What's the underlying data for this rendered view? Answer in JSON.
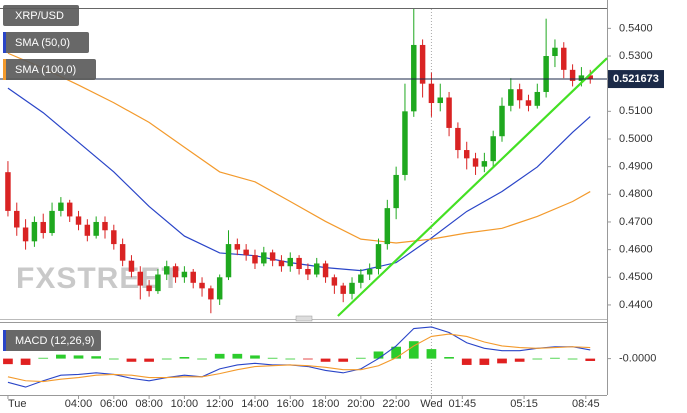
{
  "chart_data": [
    {
      "type": "candlestick",
      "name": "XRP/USD",
      "watermark": "FXSTREET",
      "up_color": "#1fa81f",
      "down_color": "#d92323",
      "x": [
        0,
        0.5,
        1,
        1.5,
        2,
        2.5,
        3,
        3.5,
        4,
        4.5,
        5,
        5.5,
        6,
        6.5,
        7,
        7.5,
        8,
        8.5,
        9,
        9.5,
        10,
        10.5,
        11,
        11.5,
        12,
        12.5,
        13,
        13.5,
        14,
        14.5,
        15,
        15.5,
        16,
        16.5,
        17,
        17.5,
        18,
        18.5,
        19,
        19.5,
        20,
        20.5,
        21,
        21.5,
        22,
        22.5,
        23,
        23.5,
        24,
        24.5,
        25,
        25.5,
        26,
        26.5,
        27,
        27.5,
        28,
        28.5,
        29,
        29.5,
        30,
        30.5,
        31,
        31.5,
        32,
        32.5,
        33
      ],
      "open": [
        0.488,
        0.474,
        0.468,
        0.463,
        0.47,
        0.466,
        0.474,
        0.477,
        0.472,
        0.469,
        0.465,
        0.47,
        0.467,
        0.462,
        0.456,
        0.452,
        0.447,
        0.445,
        0.451,
        0.454,
        0.45,
        0.452,
        0.448,
        0.446,
        0.442,
        0.45,
        0.462,
        0.46,
        0.458,
        0.455,
        0.459,
        0.456,
        0.454,
        0.457,
        0.453,
        0.451,
        0.455,
        0.45,
        0.447,
        0.444,
        0.448,
        0.451,
        0.453,
        0.462,
        0.475,
        0.487,
        0.51,
        0.534,
        0.52,
        0.513,
        0.515,
        0.504,
        0.496,
        0.493,
        0.49,
        0.492,
        0.501,
        0.512,
        0.518,
        0.514,
        0.512,
        0.517,
        0.53,
        0.533,
        0.525,
        0.521,
        0.523
      ],
      "high": [
        0.492,
        0.477,
        0.471,
        0.472,
        0.473,
        0.477,
        0.479,
        0.478,
        0.474,
        0.471,
        0.472,
        0.472,
        0.469,
        0.464,
        0.458,
        0.454,
        0.449,
        0.453,
        0.456,
        0.455,
        0.454,
        0.453,
        0.45,
        0.447,
        0.451,
        0.467,
        0.464,
        0.462,
        0.46,
        0.461,
        0.46,
        0.458,
        0.459,
        0.458,
        0.455,
        0.457,
        0.456,
        0.451,
        0.448,
        0.45,
        0.453,
        0.455,
        0.464,
        0.478,
        0.49,
        0.52,
        0.547,
        0.536,
        0.524,
        0.52,
        0.517,
        0.506,
        0.499,
        0.495,
        0.495,
        0.503,
        0.515,
        0.522,
        0.52,
        0.516,
        0.52,
        0.5435,
        0.536,
        0.535,
        0.527,
        0.526,
        0.525
      ],
      "low": [
        0.472,
        0.465,
        0.46,
        0.461,
        0.464,
        0.465,
        0.472,
        0.47,
        0.467,
        0.463,
        0.464,
        0.464,
        0.46,
        0.454,
        0.45,
        0.442,
        0.443,
        0.444,
        0.449,
        0.448,
        0.448,
        0.446,
        0.443,
        0.437,
        0.44,
        0.449,
        0.458,
        0.456,
        0.453,
        0.454,
        0.454,
        0.452,
        0.452,
        0.451,
        0.449,
        0.45,
        0.448,
        0.444,
        0.441,
        0.442,
        0.446,
        0.449,
        0.451,
        0.46,
        0.471,
        0.485,
        0.508,
        0.515,
        0.508,
        0.51,
        0.501,
        0.493,
        0.489,
        0.487,
        0.488,
        0.49,
        0.499,
        0.51,
        0.511,
        0.51,
        0.511,
        0.515,
        0.526,
        0.522,
        0.519,
        0.519,
        0.52
      ],
      "close": [
        0.474,
        0.468,
        0.463,
        0.47,
        0.466,
        0.474,
        0.477,
        0.472,
        0.469,
        0.465,
        0.47,
        0.467,
        0.462,
        0.456,
        0.452,
        0.447,
        0.445,
        0.451,
        0.454,
        0.45,
        0.452,
        0.448,
        0.446,
        0.442,
        0.45,
        0.462,
        0.46,
        0.458,
        0.455,
        0.459,
        0.456,
        0.454,
        0.457,
        0.453,
        0.451,
        0.455,
        0.45,
        0.447,
        0.444,
        0.448,
        0.451,
        0.453,
        0.462,
        0.475,
        0.487,
        0.51,
        0.534,
        0.52,
        0.513,
        0.515,
        0.504,
        0.496,
        0.493,
        0.49,
        0.492,
        0.501,
        0.512,
        0.518,
        0.514,
        0.512,
        0.517,
        0.53,
        0.533,
        0.525,
        0.521,
        0.523,
        0.5217
      ],
      "overlays": [
        {
          "name": "SMA (50,0)",
          "color": "#2a45c8",
          "x": [
            0,
            2,
            4,
            6,
            8,
            10,
            12,
            14,
            16,
            18,
            20,
            22,
            24,
            26,
            28,
            30,
            32,
            33
          ],
          "values": [
            0.5184,
            0.5095,
            0.4988,
            0.4881,
            0.4756,
            0.4649,
            0.4588,
            0.4578,
            0.4553,
            0.4535,
            0.4524,
            0.4553,
            0.4642,
            0.4738,
            0.481,
            0.4899,
            0.5024,
            0.5081
          ]
        },
        {
          "name": "SMA (100,0)",
          "color": "#f39a2c",
          "x": [
            0,
            2,
            4,
            6,
            8,
            10,
            12,
            14,
            16,
            18,
            20,
            22,
            24,
            26,
            28,
            30,
            32,
            33
          ],
          "values": [
            0.531,
            0.5256,
            0.5195,
            0.5131,
            0.506,
            0.497,
            0.4881,
            0.4845,
            0.4774,
            0.4702,
            0.4638,
            0.4624,
            0.4638,
            0.466,
            0.4677,
            0.472,
            0.4774,
            0.481
          ]
        }
      ],
      "trendline": {
        "color": "#44e024",
        "x": [
          18.7,
          33.95
        ],
        "values": [
          0.436,
          0.5292
        ]
      },
      "last_price": 0.521673,
      "xlim": [
        -0.45,
        33.95
      ],
      "ylim": [
        0.436,
        0.547
      ],
      "yticks": [
        {
          "value": 0.54,
          "label": "0.5400"
        },
        {
          "value": 0.53,
          "label": "0.5300"
        },
        {
          "value": 0.52,
          "label": "0.5200"
        },
        {
          "value": 0.51,
          "label": "0.5100"
        },
        {
          "value": 0.5,
          "label": "0.5000"
        },
        {
          "value": 0.49,
          "label": "0.4900"
        },
        {
          "value": 0.48,
          "label": "0.4800"
        },
        {
          "value": 0.47,
          "label": "0.4700"
        },
        {
          "value": 0.46,
          "label": "0.4600"
        },
        {
          "value": 0.45,
          "label": "0.4500"
        },
        {
          "value": 0.44,
          "label": "0.4400"
        }
      ],
      "xticks": [
        {
          "value": 0,
          "label": "Tue"
        },
        {
          "value": 4,
          "label": "04:00"
        },
        {
          "value": 6,
          "label": "06:00"
        },
        {
          "value": 8,
          "label": "08:00"
        },
        {
          "value": 10,
          "label": "10:00"
        },
        {
          "value": 12,
          "label": "12:00"
        },
        {
          "value": 14,
          "label": "14:00"
        },
        {
          "value": 16,
          "label": "16:00"
        },
        {
          "value": 18,
          "label": "18:00"
        },
        {
          "value": 20,
          "label": "20:00"
        },
        {
          "value": 22,
          "label": "22:00"
        },
        {
          "value": 24,
          "label": "Wed"
        },
        {
          "value": 25.75,
          "label": "01:45"
        },
        {
          "value": 29.25,
          "label": "05:15"
        },
        {
          "value": 32.75,
          "label": "08:45"
        }
      ]
    },
    {
      "type": "macd",
      "name": "MACD (12,26,9)",
      "x": [
        0,
        1,
        2,
        3,
        4,
        5,
        6,
        7,
        8,
        9,
        10,
        11,
        12,
        13,
        14,
        15,
        16,
        17,
        18,
        19,
        20,
        21,
        22,
        23,
        24,
        25,
        26,
        27,
        28,
        29,
        30,
        31,
        32,
        33
      ],
      "series": [
        {
          "color": "#2a45c8",
          "values": [
            -0.003,
            -0.0036,
            -0.0028,
            -0.0021,
            -0.002,
            -0.0018,
            -0.002,
            -0.0025,
            -0.0028,
            -0.0024,
            -0.0021,
            -0.0023,
            -0.0013,
            -0.0008,
            -0.0006,
            -0.0008,
            -0.0008,
            -0.001,
            -0.0015,
            -0.0018,
            -0.0013,
            0,
            0.0016,
            0.0038,
            0.004,
            0.0033,
            0.002,
            0.0013,
            0.001,
            0.001,
            0.0013,
            0.0015,
            0.0015,
            0.0011
          ]
        },
        {
          "color": "#f39a2c",
          "values": [
            -0.0023,
            -0.0028,
            -0.0029,
            -0.0026,
            -0.0024,
            -0.0021,
            -0.002,
            -0.0021,
            -0.0024,
            -0.0024,
            -0.0023,
            -0.0023,
            -0.0019,
            -0.0014,
            -0.001,
            -0.0009,
            -0.0008,
            -0.0009,
            -0.0011,
            -0.0014,
            -0.0014,
            -0.0009,
            0.0001,
            0.0016,
            0.0028,
            0.0031,
            0.0028,
            0.0021,
            0.0016,
            0.0014,
            0.0013,
            0.0014,
            0.0015,
            0.0014
          ]
        }
      ],
      "histogram": {
        "up_color": "#2ccc2c",
        "down_color": "#e02020",
        "values": [
          -0.0007,
          -0.0008,
          0.0001,
          0.0005,
          0.0004,
          0.0003,
          0,
          -0.0004,
          -0.0004,
          0,
          0.0002,
          0,
          0.0006,
          0.0006,
          0.0004,
          0.0001,
          0,
          -0.0001,
          -0.0004,
          -0.0004,
          0.0001,
          0.0009,
          0.0015,
          0.0022,
          0.0012,
          0.0002,
          -0.0008,
          -0.0008,
          -0.0006,
          -0.0004,
          0,
          0.0001,
          0,
          -0.0003
        ]
      },
      "xlim": [
        -0.45,
        33.95
      ],
      "ylim": [
        -0.0046,
        0.0045
      ],
      "yticks": [
        {
          "value": 0,
          "label": "-0.0000"
        }
      ]
    }
  ]
}
